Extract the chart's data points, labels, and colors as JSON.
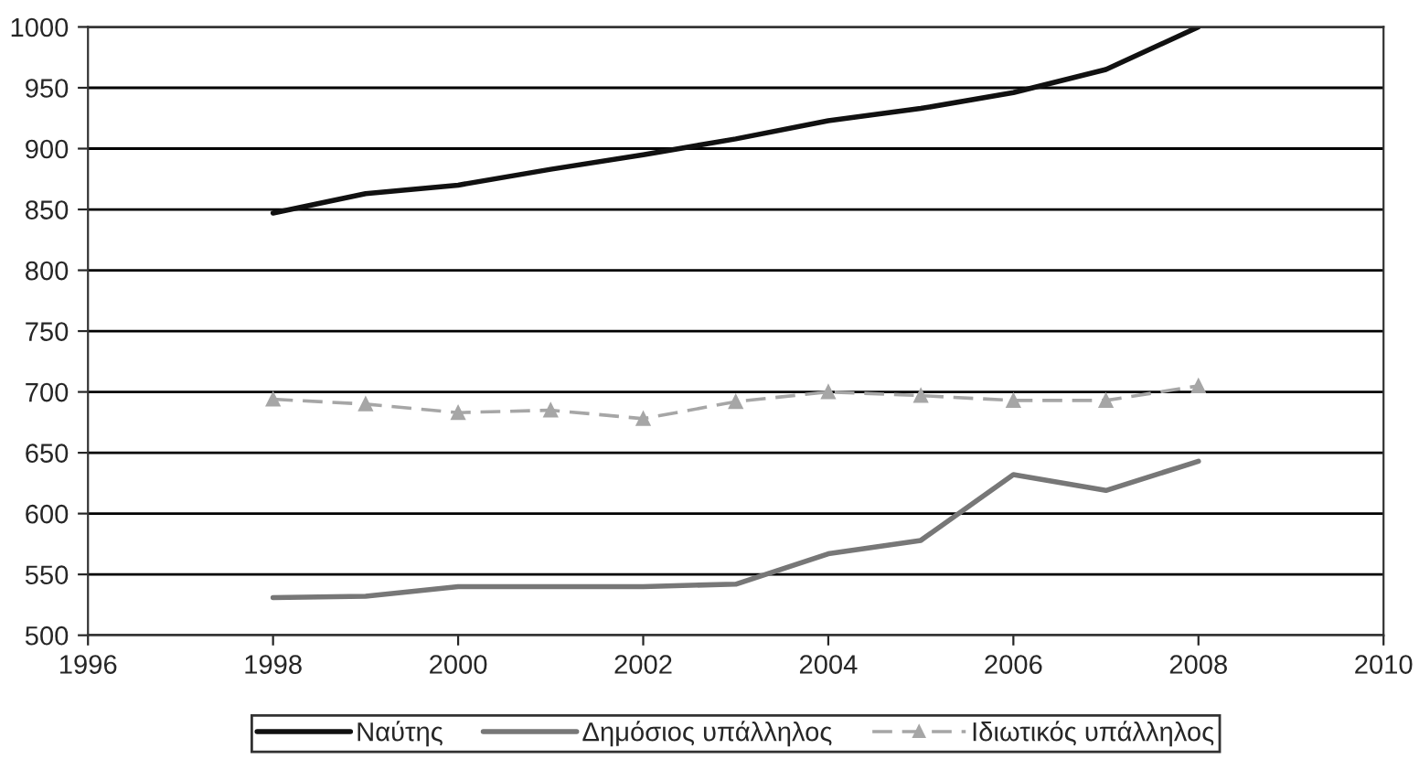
{
  "chart_data": {
    "type": "line",
    "x": [
      1998,
      1999,
      2000,
      2001,
      2002,
      2003,
      2004,
      2005,
      2006,
      2007,
      2008
    ],
    "series": [
      {
        "name": "Ναύτης",
        "color": "#111111",
        "values": [
          847,
          863,
          870,
          883,
          895,
          908,
          923,
          933,
          946,
          965,
          1000
        ]
      },
      {
        "name": "Δημόσιος υπάλληλος",
        "color": "#777777",
        "values": [
          531,
          532,
          540,
          540,
          540,
          542,
          567,
          578,
          632,
          619,
          643
        ]
      },
      {
        "name": "Ιδιωτικός υπάλληλος",
        "color": "#a6a6a6",
        "values": [
          694,
          690,
          683,
          685,
          678,
          692,
          700,
          697,
          693,
          693,
          705
        ],
        "marker": "triangle",
        "line_style": "dashed"
      }
    ],
    "xlim": [
      1996,
      2010
    ],
    "xticks": [
      1996,
      1998,
      2000,
      2002,
      2004,
      2006,
      2008,
      2010
    ],
    "ylim": [
      500,
      1000
    ],
    "yticks": [
      500,
      550,
      600,
      650,
      700,
      750,
      800,
      850,
      900,
      950,
      1000
    ],
    "grid": "y",
    "legend": "bottom"
  }
}
